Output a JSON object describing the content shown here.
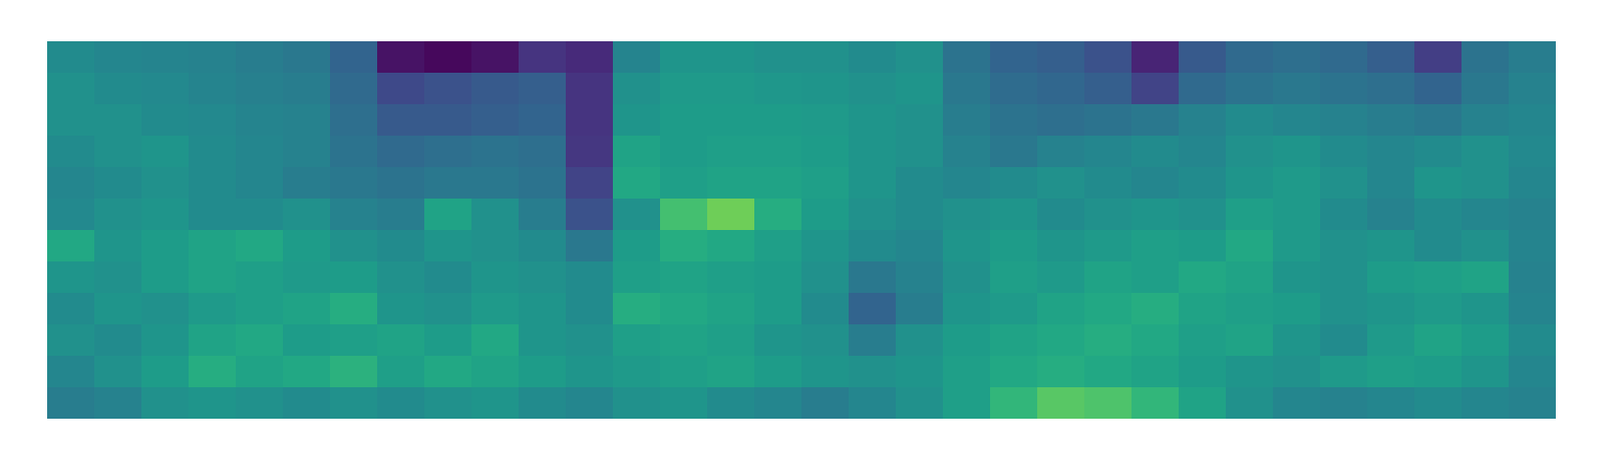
{
  "chart_data": {
    "type": "heatmap",
    "color": "viridis",
    "zlim": [
      0,
      1
    ],
    "tick_labels": false,
    "cells": [
      [
        0.48,
        0.46,
        0.45,
        0.44,
        0.42,
        0.4,
        0.32,
        0.05,
        0.02,
        0.05,
        0.15,
        0.12,
        0.45,
        0.52,
        0.52,
        0.5,
        0.5,
        0.48,
        0.5,
        0.38,
        0.32,
        0.3,
        0.25,
        0.1,
        0.28,
        0.34,
        0.36,
        0.34,
        0.3,
        0.18,
        0.38,
        0.42
      ],
      [
        0.5,
        0.48,
        0.47,
        0.45,
        0.43,
        0.42,
        0.34,
        0.22,
        0.25,
        0.28,
        0.3,
        0.15,
        0.5,
        0.54,
        0.54,
        0.53,
        0.52,
        0.5,
        0.52,
        0.4,
        0.35,
        0.33,
        0.3,
        0.2,
        0.34,
        0.38,
        0.4,
        0.38,
        0.36,
        0.32,
        0.4,
        0.44
      ],
      [
        0.5,
        0.5,
        0.48,
        0.47,
        0.45,
        0.44,
        0.36,
        0.28,
        0.28,
        0.3,
        0.32,
        0.15,
        0.52,
        0.55,
        0.55,
        0.55,
        0.54,
        0.52,
        0.5,
        0.42,
        0.38,
        0.36,
        0.38,
        0.4,
        0.44,
        0.48,
        0.46,
        0.44,
        0.42,
        0.4,
        0.44,
        0.46
      ],
      [
        0.48,
        0.5,
        0.52,
        0.48,
        0.46,
        0.44,
        0.38,
        0.34,
        0.36,
        0.38,
        0.36,
        0.16,
        0.58,
        0.55,
        0.56,
        0.56,
        0.55,
        0.52,
        0.5,
        0.44,
        0.4,
        0.44,
        0.46,
        0.48,
        0.46,
        0.5,
        0.52,
        0.48,
        0.46,
        0.48,
        0.5,
        0.47
      ],
      [
        0.46,
        0.48,
        0.5,
        0.48,
        0.46,
        0.42,
        0.4,
        0.38,
        0.4,
        0.4,
        0.38,
        0.2,
        0.6,
        0.56,
        0.58,
        0.58,
        0.56,
        0.52,
        0.48,
        0.46,
        0.48,
        0.5,
        0.48,
        0.46,
        0.48,
        0.52,
        0.54,
        0.5,
        0.46,
        0.52,
        0.5,
        0.46
      ],
      [
        0.47,
        0.5,
        0.52,
        0.48,
        0.48,
        0.5,
        0.44,
        0.42,
        0.58,
        0.5,
        0.42,
        0.25,
        0.5,
        0.7,
        0.78,
        0.62,
        0.55,
        0.5,
        0.48,
        0.5,
        0.52,
        0.48,
        0.5,
        0.52,
        0.5,
        0.56,
        0.54,
        0.48,
        0.44,
        0.48,
        0.46,
        0.44
      ],
      [
        0.6,
        0.52,
        0.55,
        0.58,
        0.6,
        0.55,
        0.5,
        0.48,
        0.52,
        0.5,
        0.48,
        0.4,
        0.55,
        0.62,
        0.6,
        0.56,
        0.52,
        0.48,
        0.46,
        0.52,
        0.55,
        0.52,
        0.54,
        0.56,
        0.55,
        0.6,
        0.54,
        0.5,
        0.52,
        0.48,
        0.5,
        0.45
      ],
      [
        0.52,
        0.5,
        0.55,
        0.58,
        0.56,
        0.54,
        0.55,
        0.5,
        0.48,
        0.52,
        0.5,
        0.48,
        0.56,
        0.58,
        0.56,
        0.55,
        0.5,
        0.4,
        0.44,
        0.5,
        0.56,
        0.54,
        0.58,
        0.56,
        0.6,
        0.58,
        0.52,
        0.5,
        0.55,
        0.56,
        0.58,
        0.44
      ],
      [
        0.48,
        0.52,
        0.5,
        0.54,
        0.56,
        0.58,
        0.62,
        0.52,
        0.5,
        0.54,
        0.52,
        0.48,
        0.62,
        0.6,
        0.58,
        0.55,
        0.48,
        0.32,
        0.42,
        0.52,
        0.54,
        0.58,
        0.6,
        0.62,
        0.58,
        0.56,
        0.55,
        0.5,
        0.52,
        0.54,
        0.52,
        0.45
      ],
      [
        0.5,
        0.48,
        0.52,
        0.58,
        0.6,
        0.55,
        0.56,
        0.58,
        0.55,
        0.6,
        0.52,
        0.5,
        0.56,
        0.58,
        0.56,
        0.52,
        0.5,
        0.42,
        0.5,
        0.55,
        0.58,
        0.6,
        0.62,
        0.6,
        0.56,
        0.58,
        0.52,
        0.48,
        0.54,
        0.58,
        0.55,
        0.48
      ],
      [
        0.46,
        0.5,
        0.55,
        0.62,
        0.58,
        0.6,
        0.64,
        0.56,
        0.6,
        0.58,
        0.55,
        0.52,
        0.54,
        0.56,
        0.58,
        0.55,
        0.52,
        0.5,
        0.52,
        0.56,
        0.6,
        0.62,
        0.6,
        0.58,
        0.55,
        0.52,
        0.5,
        0.54,
        0.56,
        0.55,
        0.52,
        0.46
      ],
      [
        0.42,
        0.44,
        0.5,
        0.52,
        0.5,
        0.48,
        0.5,
        0.48,
        0.5,
        0.52,
        0.48,
        0.46,
        0.5,
        0.52,
        0.48,
        0.46,
        0.42,
        0.46,
        0.5,
        0.56,
        0.66,
        0.74,
        0.72,
        0.66,
        0.58,
        0.5,
        0.46,
        0.44,
        0.46,
        0.48,
        0.46,
        0.44
      ]
    ]
  }
}
